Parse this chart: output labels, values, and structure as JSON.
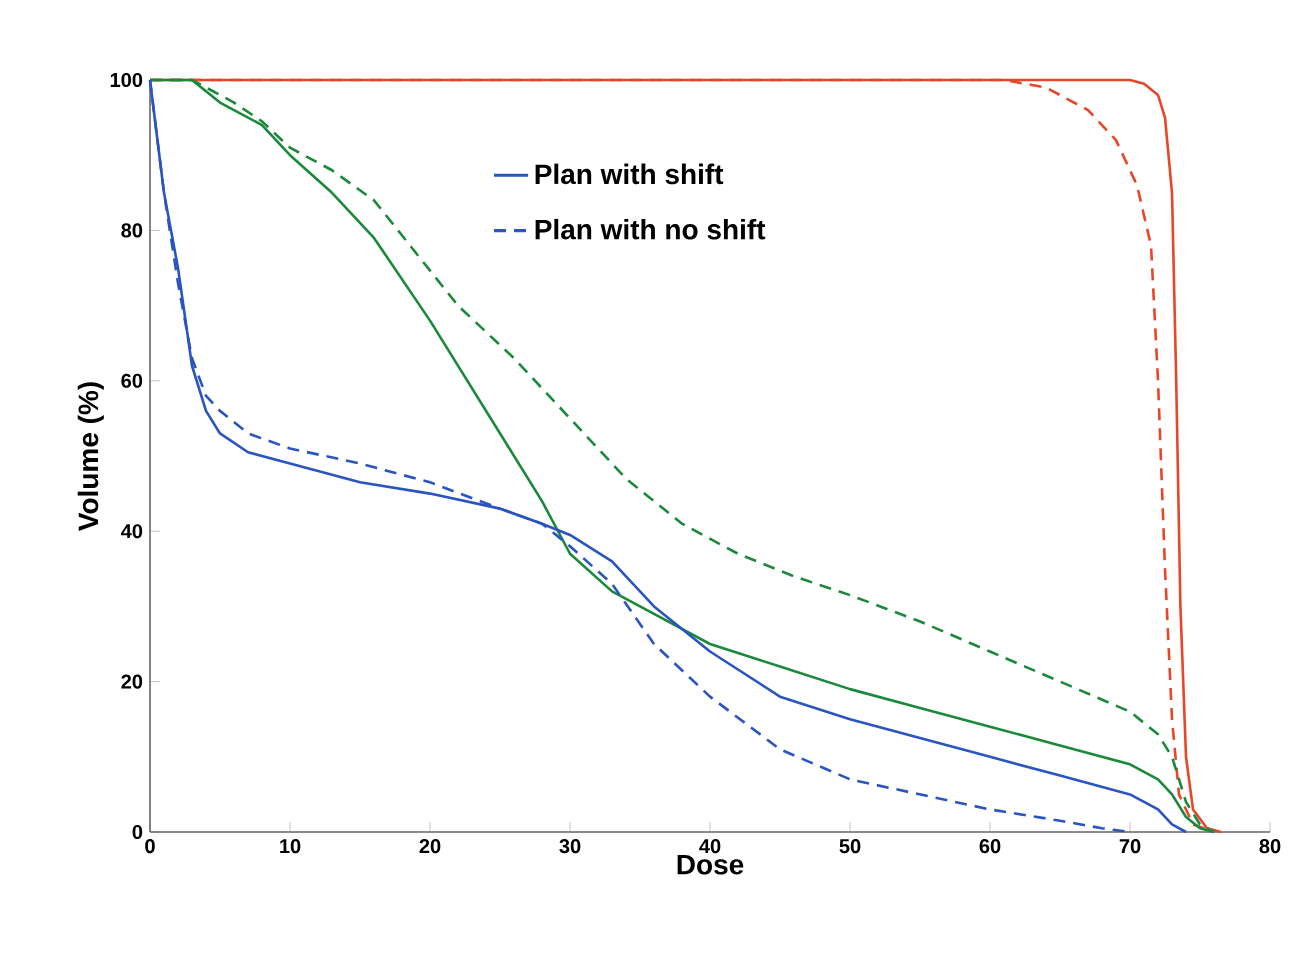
{
  "chart_data": {
    "type": "line",
    "xlabel": "Dose",
    "ylabel": "Volume (%)",
    "xlim": [
      0,
      80
    ],
    "ylim": [
      0,
      100
    ],
    "xticks": [
      0,
      10,
      20,
      30,
      40,
      50,
      60,
      70,
      80
    ],
    "yticks": [
      0,
      20,
      40,
      60,
      80,
      100
    ],
    "legend": "top",
    "marker": "none",
    "series": [
      {
        "color": "#e8462a",
        "line_style": "solid",
        "x": [
          0,
          70,
          71,
          72,
          72.5,
          73,
          73.3,
          73.6,
          74,
          74.5,
          75.5,
          76.5
        ],
        "values": [
          100,
          100,
          99.5,
          98,
          95,
          85,
          60,
          30,
          10,
          3,
          0.5,
          0
        ]
      },
      {
        "color": "#e8462a",
        "line_style": "dashed",
        "x": [
          0,
          61,
          64,
          67,
          69,
          70.5,
          71.5,
          72,
          72.5,
          73,
          73.5,
          74.5,
          76
        ],
        "values": [
          100,
          100,
          99,
          96,
          92,
          86,
          78,
          60,
          35,
          15,
          5,
          1,
          0
        ]
      },
      {
        "color": "#1a8a3a",
        "line_style": "solid",
        "x": [
          0,
          3,
          5,
          8,
          10,
          13,
          16,
          20,
          24,
          28,
          30,
          33,
          37,
          40,
          45,
          50,
          55,
          60,
          65,
          70,
          72,
          73,
          74,
          75,
          76
        ],
        "values": [
          100,
          100,
          97,
          94,
          90,
          85,
          79,
          68,
          56,
          44,
          37,
          32,
          28,
          25,
          22,
          19,
          16.5,
          14,
          11.5,
          9,
          7,
          5,
          2,
          0.5,
          0
        ]
      },
      {
        "color": "#1a8a3a",
        "line_style": "dashed",
        "x": [
          0,
          3,
          6,
          8,
          10,
          13,
          16,
          19,
          22,
          26,
          30,
          34,
          38,
          42,
          46,
          50,
          55,
          60,
          65,
          70,
          72,
          73,
          74,
          75,
          76
        ],
        "values": [
          100,
          100,
          97,
          94.5,
          91,
          88,
          84,
          77,
          70,
          63,
          55,
          47,
          41,
          37,
          34,
          31.5,
          28,
          24,
          20,
          16,
          13,
          10,
          4,
          1,
          0
        ]
      },
      {
        "name": "Plan with shift",
        "color": "#2a55c0",
        "line_style": "solid",
        "x": [
          0,
          1,
          2,
          3,
          4,
          5,
          7,
          10,
          15,
          20,
          25,
          28,
          30,
          33,
          36,
          40,
          45,
          50,
          55,
          60,
          65,
          70,
          72,
          73,
          74
        ],
        "values": [
          100,
          85,
          75,
          62,
          56,
          53,
          50.5,
          49,
          46.5,
          45,
          43,
          41,
          39.5,
          36,
          30,
          24,
          18,
          15,
          12.5,
          10,
          7.5,
          5,
          3,
          1,
          0
        ]
      },
      {
        "name": "Plan with no shift",
        "color": "#2a55c0",
        "line_style": "dashed",
        "x": [
          0,
          1,
          2,
          3,
          4,
          5,
          7,
          10,
          15,
          20,
          25,
          28,
          30,
          33,
          36,
          40,
          45,
          50,
          55,
          60,
          65,
          68,
          70
        ],
        "values": [
          100,
          85,
          73,
          63,
          58,
          56,
          53,
          51,
          49,
          46.5,
          43,
          41,
          38,
          33,
          25,
          18,
          11,
          7,
          5,
          3,
          1.5,
          0.5,
          0
        ]
      }
    ]
  }
}
